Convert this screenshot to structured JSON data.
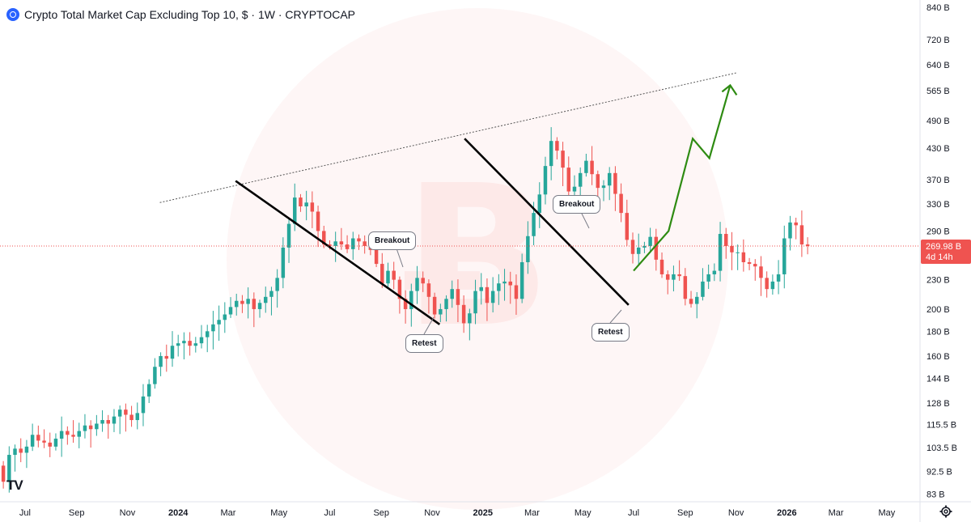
{
  "header": {
    "title": "Crypto Total Market Cap Excluding Top 10, $ · 1W · CRYPTOCAP"
  },
  "logo": "TV",
  "price_label": {
    "price": "269.98 B",
    "countdown": "4d 14h"
  },
  "annotations": {
    "breakout1": "Breakout",
    "breakout2": "Breakout",
    "retest1": "Retest",
    "retest2": "Retest"
  },
  "colors": {
    "up": "#26a69a",
    "down": "#ef5350",
    "price_line": "#ef5350",
    "projection": "#2e8b12",
    "trendline": "#000000"
  },
  "chart_data": {
    "type": "candlestick",
    "title": "Crypto Total Market Cap Excluding Top 10, $ · 1W · CRYPTOCAP",
    "y_scale": "log",
    "y_unit": "B",
    "y_ticks": [
      "840 B",
      "720 B",
      "640 B",
      "565 B",
      "490 B",
      "430 B",
      "370 B",
      "330 B",
      "290 B",
      "230 B",
      "200 B",
      "180 B",
      "160 B",
      "144 B",
      "128 B",
      "115.5 B",
      "103.5 B",
      "92.5 B",
      "83 B"
    ],
    "y_tick_values": [
      840,
      720,
      640,
      565,
      490,
      430,
      370,
      330,
      290,
      230,
      200,
      180,
      160,
      144,
      128,
      115.5,
      103.5,
      92.5,
      83
    ],
    "x_ticks": [
      "Jul",
      "Sep",
      "Nov",
      "2024",
      "Mar",
      "May",
      "Jul",
      "Sep",
      "Nov",
      "2025",
      "Mar",
      "May",
      "Jul",
      "Sep",
      "Nov",
      "2026",
      "Mar",
      "May"
    ],
    "x_tick_dates": [
      "2023-07-01",
      "2023-09-01",
      "2023-11-01",
      "2024-01-01",
      "2024-03-01",
      "2024-05-01",
      "2024-07-01",
      "2024-09-01",
      "2024-11-01",
      "2025-01-01",
      "2025-03-01",
      "2025-05-01",
      "2025-07-01",
      "2025-09-01",
      "2025-11-01",
      "2026-01-01",
      "2026-03-01",
      "2026-05-01"
    ],
    "bold_x_ticks": [
      "2024",
      "2025",
      "2026"
    ],
    "last_price": 269.98,
    "ylim": [
      80,
      870
    ],
    "xlim": [
      "2023-06-01",
      "2026-06-10"
    ],
    "candles_weekly_close": [
      95,
      88,
      100,
      103,
      101,
      104,
      110,
      107,
      106,
      104,
      108,
      112,
      110,
      109,
      112,
      115,
      113,
      116,
      118,
      116,
      120,
      124,
      121,
      118,
      122,
      132,
      140,
      152,
      160,
      158,
      168,
      170,
      172,
      168,
      170,
      175,
      180,
      186,
      190,
      195,
      202,
      208,
      205,
      210,
      200,
      206,
      212,
      218,
      232,
      268,
      300,
      340,
      326,
      332,
      318,
      290,
      272,
      270,
      276,
      272,
      266,
      280,
      276,
      270,
      265,
      248,
      226,
      240,
      230,
      210,
      200,
      218,
      232,
      226,
      212,
      195,
      200,
      210,
      220,
      204,
      187,
      196,
      218,
      222,
      206,
      218,
      226,
      228,
      224,
      210,
      250,
      283,
      316,
      345,
      395,
      445,
      425,
      392,
      350,
      358,
      382,
      405,
      380,
      356,
      360,
      382,
      346,
      316,
      278,
      260,
      268,
      270,
      282,
      253,
      236,
      230,
      236,
      234,
      210,
      205,
      212,
      228,
      236,
      240,
      286,
      270,
      262,
      262,
      250,
      248,
      245,
      232,
      220,
      228,
      236,
      280,
      302,
      298,
      272,
      269.98
    ],
    "trendlines": [
      {
        "from": [
          "2024-03-10",
          368
        ],
        "to": [
          "2024-11-10",
          186
        ]
      },
      {
        "from": [
          "2024-12-10",
          450
        ],
        "to": [
          "2025-06-25",
          204
        ]
      }
    ],
    "resistance_line": {
      "from": [
        "2023-12-10",
        332
      ],
      "to": [
        "2025-11-01",
        615
      ]
    },
    "projection_path": [
      [
        "2025-07-01",
        240
      ],
      [
        "2025-08-12",
        290
      ],
      [
        "2025-09-10",
        450
      ],
      [
        "2025-09-30",
        410
      ],
      [
        "2025-10-25",
        580
      ]
    ]
  }
}
